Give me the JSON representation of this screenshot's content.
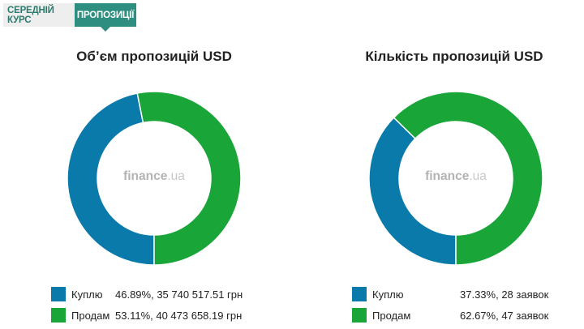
{
  "tabs": [
    {
      "label": "Середній курс",
      "active": false
    },
    {
      "label": "Пропозиції",
      "active": true
    }
  ],
  "watermark": {
    "brand": "finance",
    "tld": ".ua"
  },
  "colors": {
    "buy": "#0a7aab",
    "sell": "#1aa539",
    "tab_active": "#2e8f80"
  },
  "chart_data": [
    {
      "type": "pie",
      "donut": true,
      "title": "Обʼєм пропозицій USD",
      "slices": [
        {
          "label": "Куплю",
          "percent": 46.89,
          "detail": "46.89%, 35 740 517.51 грн"
        },
        {
          "label": "Продам",
          "percent": 53.11,
          "detail": "53.11%, 40 473 658.19 грн"
        }
      ]
    },
    {
      "type": "pie",
      "donut": true,
      "title": "Кількість пропозицій USD",
      "slices": [
        {
          "label": "Куплю",
          "percent": 37.33,
          "detail": "37.33%, 28 заявок"
        },
        {
          "label": "Продам",
          "percent": 62.67,
          "detail": "62.67%, 47 заявок"
        }
      ]
    }
  ]
}
